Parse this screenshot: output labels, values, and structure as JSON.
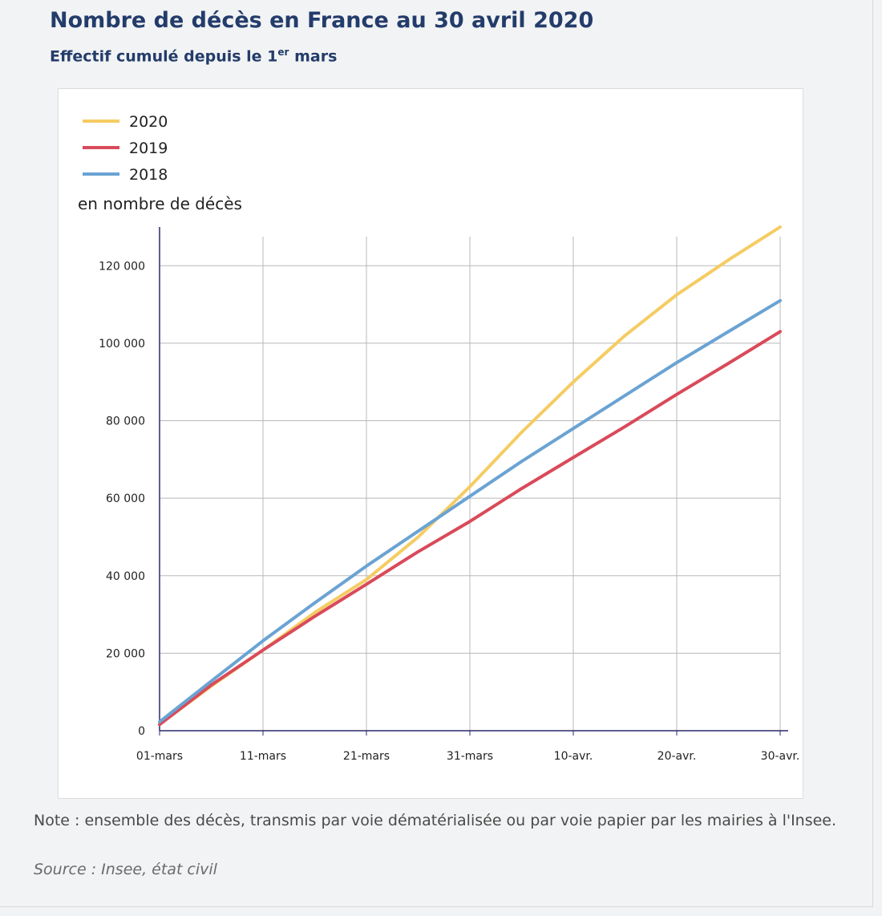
{
  "header": {
    "title": "Nombre de décès en France au 30 avril 2020",
    "subtitle_prefix": "Effectif cumulé depuis le 1",
    "subtitle_sup": "er",
    "subtitle_suffix": " mars"
  },
  "footer": {
    "note": "Note : ensemble des décès, transmis par voie dématérialisée ou par voie papier par les mairies à l'Insee.",
    "source": "Source : Insee, état civil"
  },
  "chart_data": {
    "type": "line",
    "title": "Nombre de décès en France au 30 avril 2020",
    "subtitle": "Effectif cumulé depuis le 1er mars",
    "ylabel": "en nombre de décès",
    "xlabel": "",
    "x_tick_labels": [
      "01-mars",
      "11-mars",
      "21-mars",
      "31-mars",
      "10-avr.",
      "20-avr.",
      "30-avr."
    ],
    "x_tick_days": [
      1,
      11,
      21,
      31,
      41,
      51,
      61
    ],
    "xlim": [
      1,
      61
    ],
    "ylim": [
      0,
      130000
    ],
    "y_ticks": [
      0,
      20000,
      40000,
      60000,
      80000,
      100000,
      120000
    ],
    "y_tick_labels": [
      "0",
      "20 000",
      "40 000",
      "60 000",
      "80 000",
      "100 000",
      "120 000"
    ],
    "grid": true,
    "legend_position": "top-left",
    "series": [
      {
        "name": "2020",
        "color": "#f5cc62",
        "x": [
          1,
          6,
          11,
          16,
          21,
          26,
          31,
          36,
          41,
          46,
          51,
          56,
          61
        ],
        "values": [
          1700,
          11500,
          20800,
          30500,
          39000,
          50000,
          63000,
          77000,
          90000,
          102000,
          112500,
          121500,
          130000
        ]
      },
      {
        "name": "2019",
        "color": "#d94a5a",
        "x": [
          1,
          6,
          11,
          16,
          21,
          26,
          31,
          36,
          41,
          46,
          51,
          56,
          61
        ],
        "values": [
          1600,
          11800,
          20800,
          29500,
          37800,
          46200,
          54000,
          62500,
          70500,
          78500,
          86800,
          94800,
          103000
        ]
      },
      {
        "name": "2018",
        "color": "#6aa3d3",
        "x": [
          1,
          6,
          11,
          16,
          21,
          26,
          31,
          36,
          41,
          46,
          51,
          56,
          61
        ],
        "values": [
          2300,
          12800,
          23200,
          33000,
          42500,
          51500,
          60500,
          69500,
          78000,
          86500,
          95000,
          103000,
          111000
        ]
      }
    ]
  }
}
